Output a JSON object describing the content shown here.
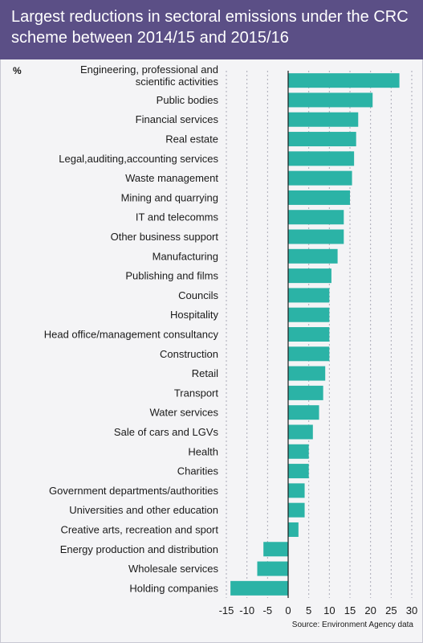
{
  "header": {
    "title": "Largest reductions in sectoral emissions under the CRC scheme between 2014/15 and 2015/16"
  },
  "chart_data": {
    "type": "bar",
    "orientation": "horizontal",
    "unit_label": "%",
    "source": "Source: Environment Agency data",
    "xlim": [
      -15,
      30
    ],
    "ticks": [
      -15,
      -10,
      -5,
      0,
      5,
      10,
      15,
      20,
      25,
      30
    ],
    "grid": true,
    "bar_color": "#2bb3a6",
    "categories": [
      [
        "Engineering, professional and",
        "scientific activities"
      ],
      "Public bodies",
      "Financial services",
      "Real estate",
      "Legal,auditing,accounting services",
      "Waste management",
      "Mining and quarrying",
      "IT and telecomms",
      "Other business support",
      "Manufacturing",
      "Publishing and films",
      "Councils",
      "Hospitality",
      "Head office/management consultancy",
      "Construction",
      "Retail",
      "Transport",
      "Water services",
      "Sale of cars and LGVs",
      "Health",
      "Charities",
      "Government departments/authorities",
      "Universities and other education",
      "Creative arts, recreation and sport",
      "Energy production and distribution",
      "Wholesale services",
      "Holding companies"
    ],
    "values": [
      27,
      20.5,
      17,
      16.5,
      16,
      15.5,
      15,
      13.5,
      13.5,
      12,
      10.5,
      10,
      10,
      10,
      10,
      9,
      8.5,
      7.5,
      6,
      5,
      5,
      4,
      4,
      2.5,
      -6,
      -7.5,
      -14
    ]
  }
}
